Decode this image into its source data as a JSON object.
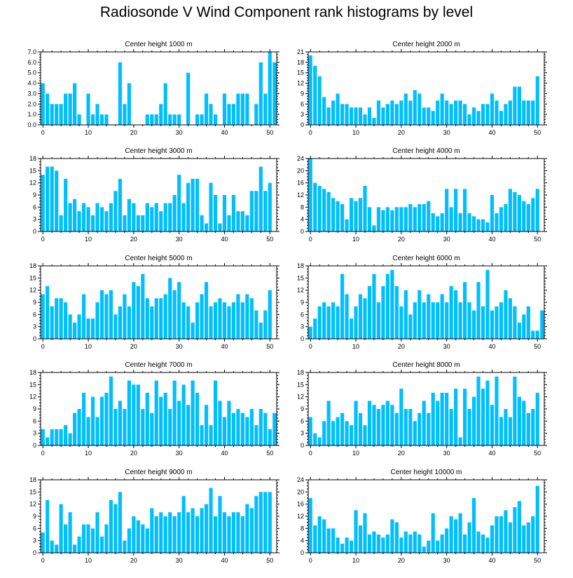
{
  "title": "Radiosonde V Wind Component rank histograms by level",
  "bar_color": "#00bfff",
  "chart_data": [
    {
      "type": "bar",
      "title": "Center height 1000 m",
      "ylim": [
        0,
        7
      ],
      "yticks": [
        0,
        1,
        2,
        3,
        4,
        5,
        6,
        7
      ],
      "ytick_labels": [
        "0.0",
        "1.0",
        "2.0",
        "3.0",
        "4.0",
        "5.0",
        "6.0",
        "7.0"
      ],
      "xlim": [
        -0.5,
        51.5
      ],
      "xticks": [
        0,
        10,
        20,
        30,
        40,
        50
      ],
      "values": [
        4,
        3,
        2,
        2,
        2,
        3,
        3,
        4,
        1,
        0,
        3,
        1,
        2,
        1,
        1,
        0,
        0,
        6,
        2,
        4,
        0,
        0,
        0,
        1,
        1,
        1,
        2,
        4,
        1,
        1,
        1,
        0,
        5,
        0,
        1,
        1,
        3,
        2,
        1,
        0,
        3,
        2,
        2,
        3,
        3,
        3,
        0,
        2,
        6,
        3,
        7,
        6
      ]
    },
    {
      "type": "bar",
      "title": "Center height 2000 m",
      "ylim": [
        0,
        21
      ],
      "yticks": [
        0,
        3,
        6,
        9,
        12,
        15,
        18,
        21
      ],
      "ytick_labels": [
        "0",
        "3",
        "6",
        "9",
        "12",
        "15",
        "18",
        "21"
      ],
      "xlim": [
        -0.5,
        51.5
      ],
      "xticks": [
        0,
        10,
        20,
        30,
        40,
        50
      ],
      "values": [
        20,
        17,
        14,
        8,
        5,
        7,
        9,
        6,
        6,
        5,
        5,
        5,
        3,
        5,
        2,
        7,
        5,
        6,
        7,
        6,
        7,
        9,
        7,
        10,
        9,
        5,
        5,
        4,
        7,
        9,
        7,
        6,
        7,
        7,
        6,
        3,
        5,
        4,
        6,
        6,
        9,
        7,
        4,
        6,
        7,
        11,
        11,
        7,
        7,
        7,
        14,
        0
      ]
    },
    {
      "type": "bar",
      "title": "Center height 3000 m",
      "ylim": [
        0,
        18
      ],
      "yticks": [
        0,
        3,
        6,
        9,
        12,
        15,
        18
      ],
      "ytick_labels": [
        "0",
        "3",
        "6",
        "9",
        "12",
        "15",
        "18"
      ],
      "xlim": [
        -0.5,
        51.5
      ],
      "xticks": [
        0,
        10,
        20,
        30,
        40,
        50
      ],
      "values": [
        14,
        16,
        16,
        15,
        4,
        13,
        7,
        8,
        5,
        7,
        6,
        4,
        7,
        6,
        5,
        7,
        10,
        13,
        4,
        8,
        7,
        4,
        4,
        7,
        6,
        7,
        5,
        7,
        7,
        9,
        14,
        7,
        12,
        13,
        13,
        4,
        2,
        12,
        9,
        2,
        9,
        4,
        9,
        5,
        5,
        4,
        10,
        10,
        16,
        10,
        12,
        0
      ]
    },
    {
      "type": "bar",
      "title": "Center height 4000 m",
      "ylim": [
        0,
        24
      ],
      "yticks": [
        0,
        4,
        8,
        12,
        16,
        20,
        24
      ],
      "ytick_labels": [
        "0",
        "4",
        "8",
        "12",
        "16",
        "20",
        "24"
      ],
      "xlim": [
        -0.5,
        51.5
      ],
      "xticks": [
        0,
        10,
        20,
        30,
        40,
        50
      ],
      "values": [
        24,
        16,
        15,
        14,
        13,
        11,
        10,
        9,
        4,
        11,
        10,
        11,
        15,
        8,
        2,
        8,
        7,
        8,
        7,
        8,
        8,
        8,
        9,
        8,
        9,
        9,
        10,
        6,
        5,
        6,
        14,
        8,
        14,
        6,
        14,
        6,
        5,
        4,
        4,
        3,
        12,
        6,
        8,
        9,
        14,
        13,
        12,
        10,
        9,
        11,
        14,
        0
      ]
    },
    {
      "type": "bar",
      "title": "Center height 5000 m",
      "ylim": [
        0,
        18
      ],
      "yticks": [
        0,
        3,
        6,
        9,
        12,
        15,
        18
      ],
      "ytick_labels": [
        "0",
        "3",
        "6",
        "9",
        "12",
        "15",
        "18"
      ],
      "xlim": [
        -0.5,
        51.5
      ],
      "xticks": [
        0,
        10,
        20,
        30,
        40,
        50
      ],
      "values": [
        11,
        13,
        8,
        10,
        10,
        9,
        6,
        4,
        6,
        11,
        5,
        5,
        9,
        12,
        11,
        12,
        6,
        8,
        11,
        8,
        14,
        13,
        16,
        10,
        8,
        10,
        10,
        11,
        15,
        12,
        14,
        9,
        8,
        4,
        9,
        11,
        14,
        8,
        9,
        10,
        9,
        8,
        9,
        11,
        9,
        11,
        10,
        7,
        4,
        7,
        12,
        0
      ]
    },
    {
      "type": "bar",
      "title": "Center height 6000 m",
      "ylim": [
        0,
        18
      ],
      "yticks": [
        0,
        3,
        6,
        9,
        12,
        15,
        18
      ],
      "ytick_labels": [
        "0",
        "3",
        "6",
        "9",
        "12",
        "15",
        "18"
      ],
      "xlim": [
        -0.5,
        51.5
      ],
      "xticks": [
        0,
        10,
        20,
        30,
        40,
        50
      ],
      "values": [
        3,
        5,
        8,
        9,
        8,
        9,
        8,
        16,
        11,
        5,
        8,
        11,
        10,
        13,
        16,
        9,
        13,
        16,
        17,
        13,
        8,
        12,
        6,
        9,
        12,
        9,
        11,
        9,
        9,
        11,
        9,
        13,
        12,
        9,
        14,
        9,
        7,
        14,
        8,
        17,
        7,
        8,
        9,
        12,
        10,
        8,
        4,
        6,
        8,
        2,
        2,
        7
      ]
    },
    {
      "type": "bar",
      "title": "Center height 7000 m",
      "ylim": [
        0,
        18
      ],
      "yticks": [
        0,
        3,
        6,
        9,
        12,
        15,
        18
      ],
      "ytick_labels": [
        "0",
        "3",
        "6",
        "9",
        "12",
        "15",
        "18"
      ],
      "xlim": [
        -0.5,
        51.5
      ],
      "xticks": [
        0,
        10,
        20,
        30,
        40,
        50
      ],
      "values": [
        4,
        2,
        4,
        4,
        4,
        5,
        3,
        8,
        9,
        13,
        7,
        12,
        7,
        12,
        13,
        17,
        9,
        11,
        9,
        16,
        15,
        15,
        9,
        13,
        8,
        16,
        12,
        13,
        9,
        16,
        11,
        15,
        10,
        16,
        13,
        5,
        10,
        5,
        16,
        11,
        7,
        11,
        8,
        9,
        8,
        7,
        9,
        5,
        9,
        8,
        4,
        8
      ]
    },
    {
      "type": "bar",
      "title": "Center height 8000 m",
      "ylim": [
        0,
        18
      ],
      "yticks": [
        0,
        3,
        6,
        9,
        12,
        15,
        18
      ],
      "ytick_labels": [
        "0",
        "3",
        "6",
        "9",
        "12",
        "15",
        "18"
      ],
      "xlim": [
        -0.5,
        51.5
      ],
      "xticks": [
        0,
        10,
        20,
        30,
        40,
        50
      ],
      "values": [
        7,
        3,
        2,
        6,
        11,
        6,
        7,
        8,
        6,
        5,
        11,
        8,
        5,
        11,
        10,
        9,
        10,
        11,
        10,
        8,
        14,
        9,
        9,
        6,
        8,
        11,
        8,
        13,
        11,
        13,
        13,
        9,
        14,
        2,
        14,
        9,
        12,
        17,
        14,
        16,
        10,
        17,
        7,
        9,
        7,
        17,
        12,
        11,
        8,
        9,
        13,
        0
      ]
    },
    {
      "type": "bar",
      "title": "Center height 9000 m",
      "ylim": [
        0,
        18
      ],
      "yticks": [
        0,
        3,
        6,
        9,
        12,
        15,
        18
      ],
      "ytick_labels": [
        "0",
        "3",
        "6",
        "9",
        "12",
        "15",
        "18"
      ],
      "xlim": [
        -0.5,
        51.5
      ],
      "xticks": [
        0,
        10,
        20,
        30,
        40,
        50
      ],
      "values": [
        5,
        13,
        3,
        2,
        12,
        7,
        10,
        2,
        4,
        7,
        7,
        6,
        10,
        4,
        7,
        13,
        12,
        15,
        3,
        6,
        9,
        8,
        7,
        6,
        11,
        9,
        10,
        9,
        10,
        9,
        10,
        14,
        10,
        11,
        9,
        11,
        12,
        16,
        9,
        14,
        10,
        9,
        10,
        10,
        9,
        12,
        11,
        14,
        15,
        15,
        15,
        0
      ]
    },
    {
      "type": "bar",
      "title": "Center height 10000 m",
      "ylim": [
        0,
        24
      ],
      "yticks": [
        0,
        4,
        8,
        12,
        16,
        20,
        24
      ],
      "ytick_labels": [
        "0",
        "4",
        "8",
        "12",
        "16",
        "20",
        "24"
      ],
      "xlim": [
        -0.5,
        51.5
      ],
      "xticks": [
        0,
        10,
        20,
        30,
        40,
        50
      ],
      "values": [
        18,
        9,
        12,
        11,
        8,
        8,
        5,
        3,
        5,
        4,
        14,
        9,
        13,
        6,
        7,
        6,
        5,
        6,
        11,
        10,
        5,
        7,
        6,
        7,
        6,
        2,
        4,
        13,
        4,
        6,
        8,
        12,
        11,
        13,
        6,
        10,
        18,
        7,
        6,
        5,
        9,
        12,
        12,
        14,
        10,
        15,
        17,
        9,
        10,
        12,
        22,
        0
      ]
    }
  ]
}
